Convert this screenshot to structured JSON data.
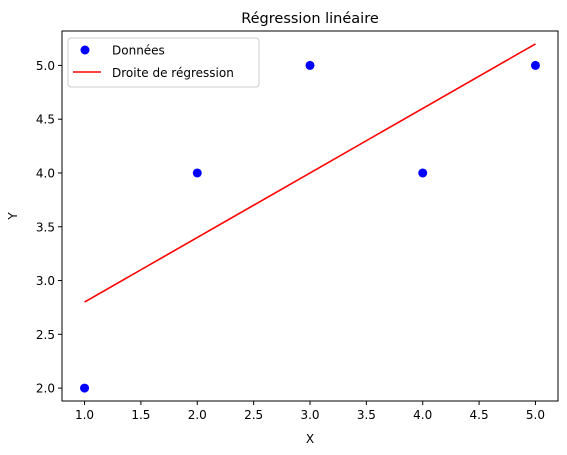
{
  "chart_data": {
    "type": "scatter",
    "title": "Régression linéaire",
    "xlabel": "X",
    "ylabel": "Y",
    "xlim": [
      0.8,
      5.2
    ],
    "ylim": [
      1.88,
      5.32
    ],
    "xticks": [
      1.0,
      1.5,
      2.0,
      2.5,
      3.0,
      3.5,
      4.0,
      4.5,
      5.0
    ],
    "xtick_labels": [
      "1.0",
      "1.5",
      "2.0",
      "2.5",
      "3.0",
      "3.5",
      "4.0",
      "4.5",
      "5.0"
    ],
    "yticks": [
      2.0,
      2.5,
      3.0,
      3.5,
      4.0,
      4.5,
      5.0
    ],
    "ytick_labels": [
      "2.0",
      "2.5",
      "3.0",
      "3.5",
      "4.0",
      "4.5",
      "5.0"
    ],
    "grid": false,
    "legend_position": "top-left",
    "series": [
      {
        "name": "Données",
        "kind": "scatter",
        "color": "#0000ff",
        "x": [
          1,
          2,
          3,
          4,
          5
        ],
        "y": [
          2,
          4,
          5,
          4,
          5
        ]
      },
      {
        "name": "Droite de régression",
        "kind": "line",
        "color": "#ff0000",
        "x": [
          1,
          5
        ],
        "y": [
          2.8,
          5.2
        ]
      }
    ]
  }
}
